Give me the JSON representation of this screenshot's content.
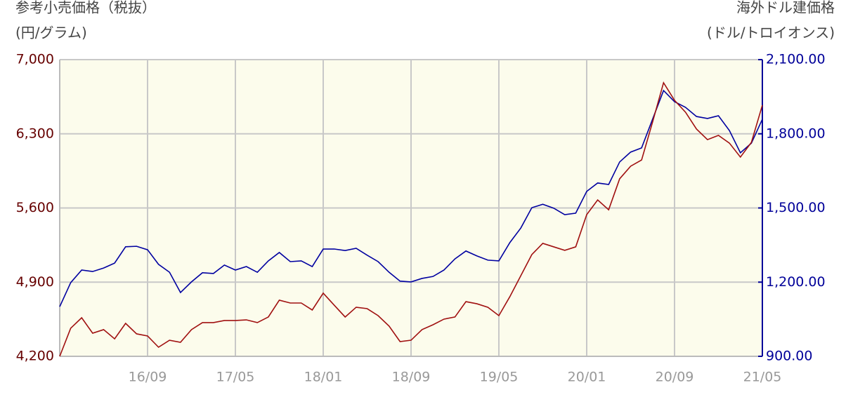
{
  "chart_data": {
    "type": "line",
    "ylabel": "参考小売価格（税抜）",
    "ylabel_unit": "(円/グラム)",
    "y2label": "海外ドル建価格",
    "y2label_unit": "(ドル/トロイオンス)",
    "categories": [
      null,
      null,
      null,
      null,
      null,
      null,
      null,
      null,
      "16/09",
      null,
      null,
      null,
      null,
      null,
      null,
      null,
      "17/05",
      null,
      null,
      null,
      null,
      null,
      null,
      null,
      "18/01",
      null,
      null,
      null,
      null,
      null,
      null,
      null,
      "18/09",
      null,
      null,
      null,
      null,
      null,
      null,
      null,
      "19/05",
      null,
      null,
      null,
      null,
      null,
      null,
      null,
      "20/01",
      null,
      null,
      null,
      null,
      null,
      null,
      null,
      "20/09",
      null,
      null,
      null,
      null,
      null,
      null,
      null,
      "21/05"
    ],
    "ylim": [
      4200,
      7000
    ],
    "yticks": [
      {
        "value": 4200,
        "label": "4,200"
      },
      {
        "value": 4900,
        "label": "4,900"
      },
      {
        "value": 5600,
        "label": "5,600"
      },
      {
        "value": 6300,
        "label": "6,300"
      },
      {
        "value": 7000,
        "label": "7,000"
      }
    ],
    "y2lim": [
      900,
      2100
    ],
    "y2ticks": [
      {
        "value": 900,
        "label": "900.00"
      },
      {
        "value": 1200,
        "label": "1,200.00"
      },
      {
        "value": 1500,
        "label": "1,500.00"
      },
      {
        "value": 1800,
        "label": "1,800.00"
      },
      {
        "value": 2100,
        "label": "2,100.00"
      }
    ],
    "grid": true,
    "series": [
      {
        "color": "#0000a0",
        "axis": "y2",
        "values": [
          1101,
          1198,
          1249,
          1243,
          1257,
          1277,
          1343,
          1345,
          1331,
          1272,
          1240,
          1158,
          1201,
          1238,
          1235,
          1269,
          1249,
          1263,
          1240,
          1286,
          1320,
          1283,
          1286,
          1263,
          1334,
          1334,
          1328,
          1337,
          1309,
          1283,
          1240,
          1204,
          1201,
          1215,
          1223,
          1249,
          1294,
          1326,
          1306,
          1289,
          1286,
          1360,
          1419,
          1501,
          1515,
          1499,
          1473,
          1479,
          1567,
          1601,
          1595,
          1686,
          1726,
          1743,
          1859,
          1975,
          1930,
          1907,
          1870,
          1862,
          1873,
          1813,
          1723,
          1762,
          1859
        ]
      },
      {
        "color": "#a01010",
        "axis": "y",
        "values": [
          4200,
          4465,
          4564,
          4418,
          4452,
          4365,
          4511,
          4412,
          4392,
          4286,
          4352,
          4332,
          4452,
          4518,
          4518,
          4538,
          4538,
          4544,
          4518,
          4571,
          4730,
          4703,
          4703,
          4637,
          4796,
          4683,
          4571,
          4663,
          4650,
          4584,
          4485,
          4339,
          4352,
          4452,
          4498,
          4551,
          4571,
          4716,
          4696,
          4663,
          4584,
          4763,
          4961,
          5160,
          5266,
          5233,
          5200,
          5233,
          5537,
          5676,
          5583,
          5875,
          5994,
          6053,
          6411,
          6782,
          6616,
          6504,
          6345,
          6245,
          6285,
          6212,
          6080,
          6219,
          6570
        ]
      }
    ]
  }
}
